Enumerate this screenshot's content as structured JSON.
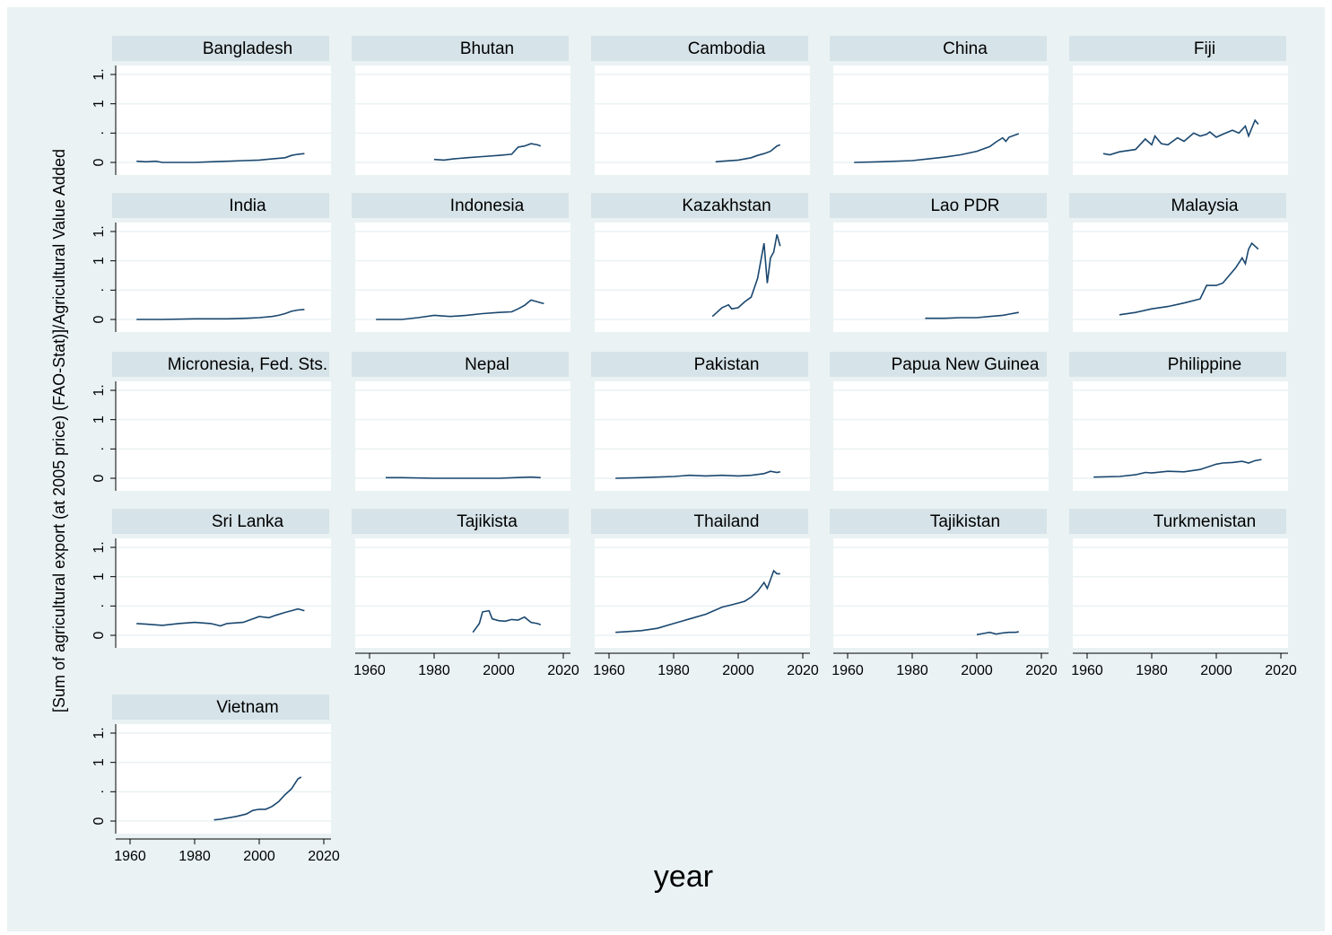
{
  "chart_data": {
    "type": "line",
    "ylabel": "[Sum of agricultural export (at 2005 price) (FAO-Stat)]/Agricultural Value Added",
    "xlabel": "year",
    "xlim": [
      1960,
      2020
    ],
    "x_ticks": [
      "1960",
      "1980",
      "2000",
      "2020"
    ],
    "y_tick_labels": [
      "0",
      ".",
      "1",
      "1."
    ],
    "ylim": [
      0,
      1.5
    ],
    "grid": true,
    "line_color": "#1a476f",
    "panels": [
      {
        "country": "Bangladesh",
        "x": [
          1962,
          1965,
          1968,
          1970,
          1975,
          1980,
          1985,
          1990,
          1995,
          2000,
          2004,
          2006,
          2008,
          2010,
          2012,
          2014
        ],
        "y": [
          0.02,
          0.01,
          0.02,
          0.0,
          0.0,
          0.0,
          0.01,
          0.02,
          0.03,
          0.04,
          0.06,
          0.07,
          0.08,
          0.12,
          0.14,
          0.15
        ]
      },
      {
        "country": "Bhutan",
        "x": [
          1980,
          1983,
          1986,
          1990,
          1995,
          2000,
          2004,
          2006,
          2008,
          2010,
          2012,
          2013
        ],
        "y": [
          0.05,
          0.04,
          0.06,
          0.08,
          0.1,
          0.12,
          0.14,
          0.26,
          0.28,
          0.32,
          0.3,
          0.28
        ]
      },
      {
        "country": "Cambodia",
        "x": [
          1993,
          1995,
          2000,
          2004,
          2006,
          2008,
          2010,
          2012,
          2013
        ],
        "y": [
          0.01,
          0.02,
          0.04,
          0.08,
          0.12,
          0.15,
          0.19,
          0.28,
          0.3
        ]
      },
      {
        "country": "China",
        "x": [
          1962,
          1970,
          1980,
          1985,
          1990,
          1995,
          2000,
          2004,
          2006,
          2008,
          2009,
          2010,
          2012,
          2013
        ],
        "y": [
          0.0,
          0.01,
          0.03,
          0.06,
          0.09,
          0.13,
          0.19,
          0.27,
          0.35,
          0.42,
          0.36,
          0.43,
          0.47,
          0.49
        ]
      },
      {
        "country": "Fiji",
        "x": [
          1965,
          1967,
          1970,
          1975,
          1978,
          1980,
          1981,
          1983,
          1985,
          1988,
          1990,
          1993,
          1995,
          1997,
          1998,
          2000,
          2002,
          2005,
          2007,
          2009,
          2010,
          2012,
          2013
        ],
        "y": [
          0.15,
          0.13,
          0.18,
          0.22,
          0.4,
          0.3,
          0.45,
          0.32,
          0.3,
          0.42,
          0.36,
          0.5,
          0.45,
          0.48,
          0.52,
          0.43,
          0.48,
          0.55,
          0.5,
          0.62,
          0.45,
          0.72,
          0.65
        ]
      },
      {
        "country": "India",
        "x": [
          1962,
          1970,
          1980,
          1990,
          1996,
          2000,
          2004,
          2006,
          2008,
          2010,
          2012,
          2014
        ],
        "y": [
          0.0,
          0.0,
          0.01,
          0.01,
          0.02,
          0.03,
          0.05,
          0.07,
          0.1,
          0.14,
          0.16,
          0.17
        ]
      },
      {
        "country": "Indonesia",
        "x": [
          1962,
          1970,
          1975,
          1980,
          1985,
          1990,
          1995,
          2000,
          2004,
          2006,
          2008,
          2010,
          2012,
          2014
        ],
        "y": [
          0.0,
          0.0,
          0.03,
          0.07,
          0.05,
          0.07,
          0.1,
          0.12,
          0.13,
          0.18,
          0.24,
          0.33,
          0.3,
          0.27
        ]
      },
      {
        "country": "Kazakhstan",
        "x": [
          1992,
          1995,
          1997,
          1998,
          2000,
          2002,
          2004,
          2006,
          2008,
          2009,
          2010,
          2011,
          2012,
          2013
        ],
        "y": [
          0.05,
          0.2,
          0.25,
          0.18,
          0.2,
          0.3,
          0.38,
          0.7,
          1.3,
          0.62,
          1.05,
          1.15,
          1.45,
          1.25
        ]
      },
      {
        "country": "Lao PDR",
        "x": [
          1984,
          1990,
          1995,
          2000,
          2004,
          2008,
          2010,
          2012,
          2013
        ],
        "y": [
          0.02,
          0.02,
          0.03,
          0.03,
          0.05,
          0.07,
          0.09,
          0.11,
          0.12
        ]
      },
      {
        "country": "Malaysia",
        "x": [
          1970,
          1975,
          1980,
          1985,
          1990,
          1995,
          1997,
          2000,
          2002,
          2004,
          2006,
          2008,
          2009,
          2010,
          2011,
          2012,
          2013
        ],
        "y": [
          0.08,
          0.12,
          0.18,
          0.22,
          0.28,
          0.35,
          0.58,
          0.58,
          0.62,
          0.75,
          0.88,
          1.05,
          0.95,
          1.2,
          1.3,
          1.25,
          1.2
        ]
      },
      {
        "country": "Micronesia, Fed. Sts.",
        "x": [],
        "y": []
      },
      {
        "country": "Nepal",
        "x": [
          1965,
          1970,
          1980,
          1990,
          2000,
          2005,
          2010,
          2013
        ],
        "y": [
          0.01,
          0.01,
          0.0,
          0.0,
          0.0,
          0.01,
          0.02,
          0.01
        ]
      },
      {
        "country": "Pakistan",
        "x": [
          1962,
          1970,
          1980,
          1985,
          1990,
          1995,
          2000,
          2004,
          2008,
          2010,
          2012,
          2013
        ],
        "y": [
          0.0,
          0.01,
          0.03,
          0.05,
          0.04,
          0.05,
          0.04,
          0.05,
          0.08,
          0.12,
          0.1,
          0.11
        ]
      },
      {
        "country": "Papua New Guinea",
        "x": [],
        "y": []
      },
      {
        "country": "Philippine",
        "x": [
          1962,
          1970,
          1975,
          1978,
          1980,
          1985,
          1990,
          1995,
          2000,
          2002,
          2005,
          2008,
          2010,
          2012,
          2014
        ],
        "y": [
          0.02,
          0.03,
          0.06,
          0.1,
          0.09,
          0.12,
          0.11,
          0.15,
          0.24,
          0.26,
          0.27,
          0.29,
          0.26,
          0.3,
          0.32
        ]
      },
      {
        "country": "Sri Lanka",
        "x": [
          1962,
          1965,
          1970,
          1975,
          1980,
          1985,
          1988,
          1990,
          1995,
          2000,
          2003,
          2005,
          2008,
          2010,
          2012,
          2014
        ],
        "y": [
          0.2,
          0.19,
          0.17,
          0.2,
          0.22,
          0.2,
          0.16,
          0.2,
          0.22,
          0.32,
          0.3,
          0.34,
          0.39,
          0.42,
          0.45,
          0.42
        ]
      },
      {
        "country": "Tajikista",
        "x": [
          1992,
          1994,
          1995,
          1997,
          1998,
          2000,
          2002,
          2004,
          2006,
          2008,
          2010,
          2012,
          2013
        ],
        "y": [
          0.05,
          0.2,
          0.4,
          0.42,
          0.28,
          0.25,
          0.24,
          0.27,
          0.26,
          0.31,
          0.22,
          0.2,
          0.18
        ]
      },
      {
        "country": "Thailand",
        "x": [
          1962,
          1965,
          1970,
          1975,
          1980,
          1985,
          1990,
          1995,
          1998,
          2000,
          2002,
          2004,
          2006,
          2008,
          2009,
          2010,
          2011,
          2012,
          2013
        ],
        "y": [
          0.05,
          0.06,
          0.08,
          0.12,
          0.2,
          0.28,
          0.36,
          0.48,
          0.52,
          0.55,
          0.58,
          0.65,
          0.75,
          0.9,
          0.8,
          0.95,
          1.1,
          1.05,
          1.05
        ]
      },
      {
        "country": "Tajikistan",
        "x": [
          2000,
          2002,
          2004,
          2006,
          2008,
          2010,
          2012,
          2013
        ],
        "y": [
          0.01,
          0.03,
          0.05,
          0.02,
          0.04,
          0.05,
          0.05,
          0.06
        ]
      },
      {
        "country": "Turkmenistan",
        "x": [],
        "y": []
      },
      {
        "country": "Vietnam",
        "x": [
          1986,
          1988,
          1990,
          1993,
          1996,
          1998,
          2000,
          2002,
          2004,
          2006,
          2008,
          2010,
          2012,
          2013
        ],
        "y": [
          0.02,
          0.03,
          0.05,
          0.08,
          0.12,
          0.18,
          0.2,
          0.2,
          0.25,
          0.33,
          0.45,
          0.55,
          0.72,
          0.75
        ]
      }
    ]
  }
}
